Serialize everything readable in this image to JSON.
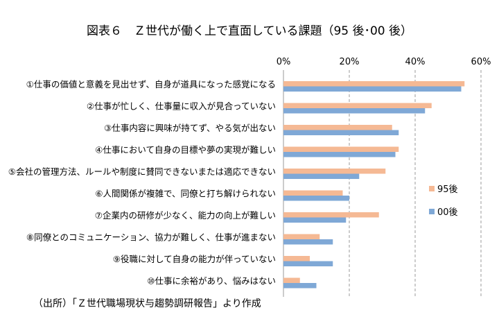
{
  "chart_data": {
    "type": "bar",
    "orientation": "horizontal",
    "title": "図表６　Ｚ世代が働く上で直面している課題（95 後･00 後）",
    "categories": [
      "①仕事の価値と意義を見出せず、自身が道具になった感覚になる",
      "②仕事が忙しく、仕事量に収入が見合っていない",
      "③仕事内容に興味が持てず、やる気が出ない",
      "④仕事において自身の目標や夢の実現が難しい",
      "⑤会社の管理方法、ルールや制度に賛同できないまたは適応できない",
      "⑥人間関係が複雑で、同僚と打ち解けられない",
      "⑦企業内の研修が少なく、能力の向上が難しい",
      "⑧同僚とのコミュニケーション、協力が難しく、仕事が進まない",
      "⑨役職に対して自身の能力が伴っていない",
      "⑩仕事に余裕があり、悩みはない"
    ],
    "series": [
      {
        "name": "95後",
        "color": "#f5b994",
        "values": [
          55,
          45,
          33,
          35,
          31,
          18,
          29,
          11,
          8,
          5
        ]
      },
      {
        "name": "00後",
        "color": "#7fa8d6",
        "values": [
          54,
          43,
          35,
          34,
          23,
          20,
          19,
          15,
          15,
          10
        ]
      }
    ],
    "xlim": [
      0,
      60
    ],
    "ticks": [
      "0%",
      "20%",
      "40%",
      "60%"
    ],
    "tick_values": [
      0,
      20,
      40,
      60
    ],
    "grid": true,
    "legend_position": "right"
  },
  "source": "（出所）「Ｚ世代職場現状与趨勢調研報告」より作成"
}
